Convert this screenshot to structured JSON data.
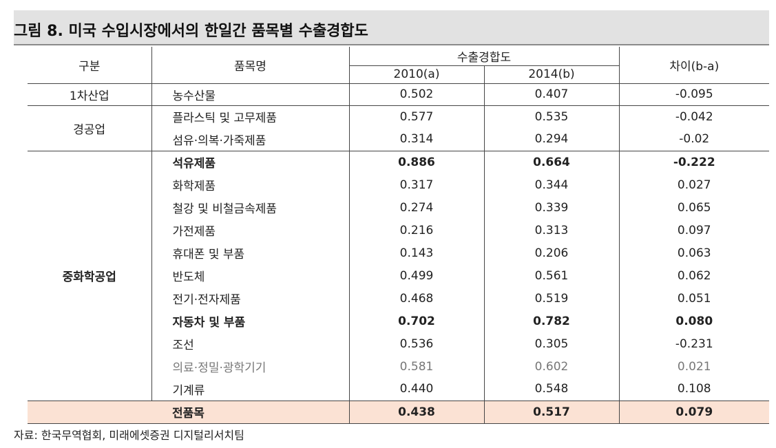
{
  "title": "그림 8. 미국 수입시장에서의 한일간 품목별 수출경합도",
  "header": {
    "category": "구분",
    "item": "품목명",
    "index": "수출경합도",
    "y2010": "2010(a)",
    "y2014": "2014(b)",
    "diff": "차이(b-a)"
  },
  "groups": [
    {
      "name": "1차산업",
      "rows": [
        {
          "item": "농수산물",
          "v2010": "0.502",
          "v2014": "0.407",
          "diff": "-0.095"
        }
      ]
    },
    {
      "name": "경공업",
      "rows": [
        {
          "item": "플라스틱 및 고무제품",
          "v2010": "0.577",
          "v2014": "0.535",
          "diff": "-0.042"
        },
        {
          "item": "섬유·의복·가죽제품",
          "v2010": "0.314",
          "v2014": "0.294",
          "diff": "-0.02"
        }
      ]
    },
    {
      "name": "중화학공업",
      "rows": [
        {
          "item": "석유제품",
          "v2010": "0.886",
          "v2014": "0.664",
          "diff": "-0.222"
        },
        {
          "item": "화학제품",
          "v2010": "0.317",
          "v2014": "0.344",
          "diff": "0.027"
        },
        {
          "item": "철강 및 비철금속제품",
          "v2010": "0.274",
          "v2014": "0.339",
          "diff": "0.065"
        },
        {
          "item": "가전제품",
          "v2010": "0.216",
          "v2014": "0.313",
          "diff": "0.097"
        },
        {
          "item": "휴대폰 및 부품",
          "v2010": "0.143",
          "v2014": "0.206",
          "diff": "0.063"
        },
        {
          "item": "반도체",
          "v2010": "0.499",
          "v2014": "0.561",
          "diff": "0.062"
        },
        {
          "item": "전기·전자제품",
          "v2010": "0.468",
          "v2014": "0.519",
          "diff": "0.051"
        },
        {
          "item": "자동차 및 부품",
          "v2010": "0.702",
          "v2014": "0.782",
          "diff": "0.080"
        },
        {
          "item": "조선",
          "v2010": "0.536",
          "v2014": "0.305",
          "diff": "-0.231"
        },
        {
          "item": "의료·정밀·광학기기",
          "v2010": "0.581",
          "v2014": "0.602",
          "diff": "0.021"
        },
        {
          "item": "기계류",
          "v2010": "0.440",
          "v2014": "0.548",
          "diff": "0.108"
        }
      ]
    }
  ],
  "total": {
    "item": "전품목",
    "v2010": "0.438",
    "v2014": "0.517",
    "diff": "0.079"
  },
  "source": "자료: 한국무역협회, 미래에셋증권 디지털리서치팀"
}
